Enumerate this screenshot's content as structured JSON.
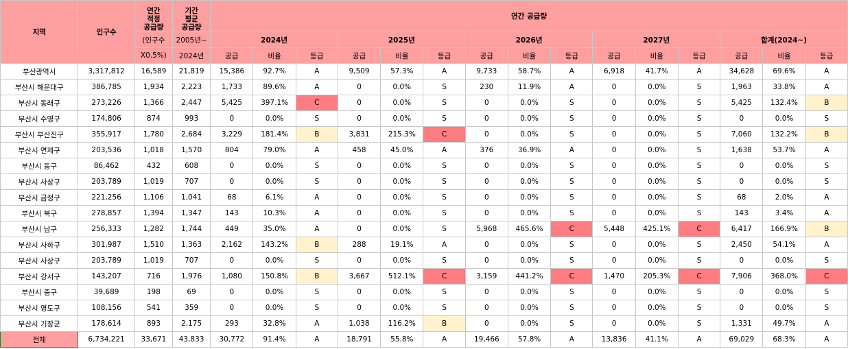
{
  "header": {
    "region": "지역",
    "population": "인구수",
    "proper": "연간\n적정\n공급량",
    "average": "기간\n평균\n공급량",
    "supply": "연간 공급량",
    "years": [
      "2024년",
      "2025년",
      "2026년",
      "2027년",
      "합계(2024~)"
    ],
    "proper_note": [
      "(인구수",
      "X0.5%)"
    ],
    "average_note": [
      "2005년~",
      "2024년"
    ],
    "sub": [
      "공급",
      "비율",
      "등급"
    ]
  },
  "table": {
    "rows": [
      [
        "부산광역시",
        "3,317,812",
        "16,589",
        "21,819",
        "15,386",
        "92.7%",
        "A",
        "9,509",
        "57.3%",
        "A",
        "9,733",
        "58.7%",
        "A",
        "6,918",
        "41.7%",
        "A",
        "34,628",
        "69.6%",
        "A"
      ],
      [
        "부산시 해운대구",
        "386,785",
        "1,934",
        "2,223",
        "1,733",
        "89.6%",
        "A",
        "0",
        "0.0%",
        "S",
        "230",
        "11.9%",
        "A",
        "0",
        "0.0%",
        "S",
        "1,963",
        "33.8%",
        "A"
      ],
      [
        "부산시 동래구",
        "273,226",
        "1,366",
        "2,447",
        "5,425",
        "397.1%",
        "C",
        "0",
        "0.0%",
        "S",
        "0",
        "0.0%",
        "S",
        "0",
        "0.0%",
        "S",
        "5,425",
        "132.4%",
        "B"
      ],
      [
        "부산시 수영구",
        "174,806",
        "874",
        "993",
        "0",
        "0.0%",
        "S",
        "0",
        "0.0%",
        "S",
        "0",
        "0.0%",
        "S",
        "0",
        "0.0%",
        "S",
        "0",
        "0.0%",
        "S"
      ],
      [
        "부산시 부산진구",
        "355,917",
        "1,780",
        "2,684",
        "3,229",
        "181.4%",
        "B",
        "3,831",
        "215.3%",
        "C",
        "0",
        "0.0%",
        "S",
        "0",
        "0.0%",
        "S",
        "7,060",
        "132.2%",
        "B"
      ],
      [
        "부산시 연제구",
        "203,536",
        "1,018",
        "1,570",
        "804",
        "79.0%",
        "A",
        "458",
        "45.0%",
        "A",
        "376",
        "36.9%",
        "A",
        "0",
        "0.0%",
        "S",
        "1,638",
        "53.7%",
        "A"
      ],
      [
        "부산시 동구",
        "86,462",
        "432",
        "608",
        "0",
        "0.0%",
        "S",
        "0",
        "0.0%",
        "S",
        "0",
        "0.0%",
        "S",
        "0",
        "0.0%",
        "S",
        "0",
        "0.0%",
        "S"
      ],
      [
        "부산시 사상구",
        "203,789",
        "1,019",
        "707",
        "0",
        "0.0%",
        "S",
        "0",
        "0.0%",
        "S",
        "0",
        "0.0%",
        "S",
        "0",
        "0.0%",
        "S",
        "0",
        "0.0%",
        "S"
      ],
      [
        "부산시 금정구",
        "221,256",
        "1,106",
        "1,041",
        "68",
        "6.1%",
        "A",
        "0",
        "0.0%",
        "S",
        "0",
        "0.0%",
        "S",
        "0",
        "0.0%",
        "S",
        "68",
        "2.0%",
        "A"
      ],
      [
        "부산시 북구",
        "278,857",
        "1,394",
        "1,347",
        "143",
        "10.3%",
        "A",
        "0",
        "0.0%",
        "S",
        "0",
        "0.0%",
        "S",
        "0",
        "0.0%",
        "S",
        "143",
        "3.4%",
        "A"
      ],
      [
        "부산시 남구",
        "256,333",
        "1,282",
        "1,744",
        "449",
        "35.0%",
        "A",
        "0",
        "0.0%",
        "S",
        "5,968",
        "465.6%",
        "C",
        "5,448",
        "425.1%",
        "C",
        "6,417",
        "166.9%",
        "B"
      ],
      [
        "부산시 사하구",
        "301,987",
        "1,510",
        "1,363",
        "2,162",
        "143.2%",
        "B",
        "288",
        "19.1%",
        "A",
        "0",
        "0.0%",
        "S",
        "0",
        "0.0%",
        "S",
        "2,450",
        "54.1%",
        "A"
      ],
      [
        "부산시 사상구",
        "203,789",
        "1,019",
        "707",
        "0",
        "0.0%",
        "S",
        "0",
        "0.0%",
        "S",
        "0",
        "0.0%",
        "S",
        "0",
        "0.0%",
        "S",
        "0",
        "0.0%",
        "S"
      ],
      [
        "부산시 강서구",
        "143,207",
        "716",
        "1,976",
        "1,080",
        "150.8%",
        "B",
        "3,667",
        "512.1%",
        "C",
        "3,159",
        "441.2%",
        "C",
        "1,470",
        "205.3%",
        "C",
        "7,906",
        "368.0%",
        "C"
      ],
      [
        "부산시 중구",
        "39,689",
        "198",
        "69",
        "0",
        "0.0%",
        "S",
        "0",
        "0.0%",
        "S",
        "0",
        "0.0%",
        "S",
        "0",
        "0.0%",
        "S",
        "0",
        "0.0%",
        "S"
      ],
      [
        "부산시 영도구",
        "108,156",
        "541",
        "359",
        "0",
        "0.0%",
        "S",
        "0",
        "0.0%",
        "S",
        "0",
        "0.0%",
        "S",
        "0",
        "0.0%",
        "S",
        "0",
        "0.0%",
        "S"
      ],
      [
        "부산시 기장군",
        "178,614",
        "893",
        "2,175",
        "293",
        "32.8%",
        "A",
        "1,038",
        "116.2%",
        "B",
        "0",
        "0.0%",
        "S",
        "0",
        "0.0%",
        "S",
        "1,331",
        "49.7%",
        "A"
      ],
      [
        "전체",
        "6,734,221",
        "33,671",
        "43,833",
        "30,772",
        "91.4%",
        "A",
        "18,791",
        "55.8%",
        "A",
        "19,466",
        "57.8%",
        "A",
        "13,836",
        "41.1%",
        "A",
        "69,029",
        "68.3%",
        "A"
      ]
    ]
  }
}
